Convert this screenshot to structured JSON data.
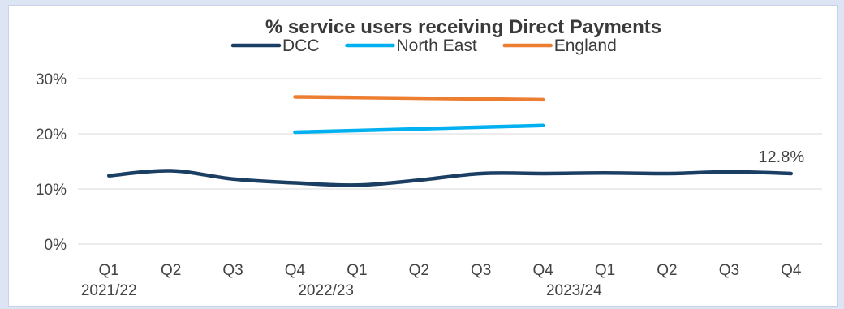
{
  "chart_data": {
    "type": "line",
    "title": "% service users receiving Direct Payments",
    "categories": [
      "Q1",
      "Q2",
      "Q3",
      "Q4",
      "Q1",
      "Q2",
      "Q3",
      "Q4",
      "Q1",
      "Q2",
      "Q3",
      "Q4"
    ],
    "year_labels": [
      {
        "label": "2021/22",
        "index": 0
      },
      {
        "label": "2022/23",
        "index": 4
      },
      {
        "label": "2023/24",
        "index": 8
      }
    ],
    "y_ticks": [
      "0%",
      "10%",
      "20%",
      "30%"
    ],
    "y_tick_values": [
      0,
      10,
      20,
      30
    ],
    "ylim": [
      0,
      30
    ],
    "legend_position": "top-center",
    "grid": true,
    "series": [
      {
        "name": "DCC",
        "color": "#1b3f63",
        "values": [
          12.4,
          13.3,
          11.8,
          11.1,
          10.7,
          11.6,
          12.8,
          12.8,
          12.9,
          12.8,
          13.1,
          12.8
        ]
      },
      {
        "name": "North East",
        "color": "#00b0f0",
        "values": [
          null,
          null,
          null,
          20.3,
          null,
          null,
          null,
          21.5,
          null,
          null,
          null,
          null
        ]
      },
      {
        "name": "England",
        "color": "#ed7d31",
        "values": [
          null,
          null,
          null,
          26.7,
          null,
          null,
          null,
          26.2,
          null,
          null,
          null,
          null
        ]
      }
    ],
    "annotations": [
      {
        "series": "DCC",
        "index": 11,
        "text": "12.8%"
      }
    ]
  }
}
